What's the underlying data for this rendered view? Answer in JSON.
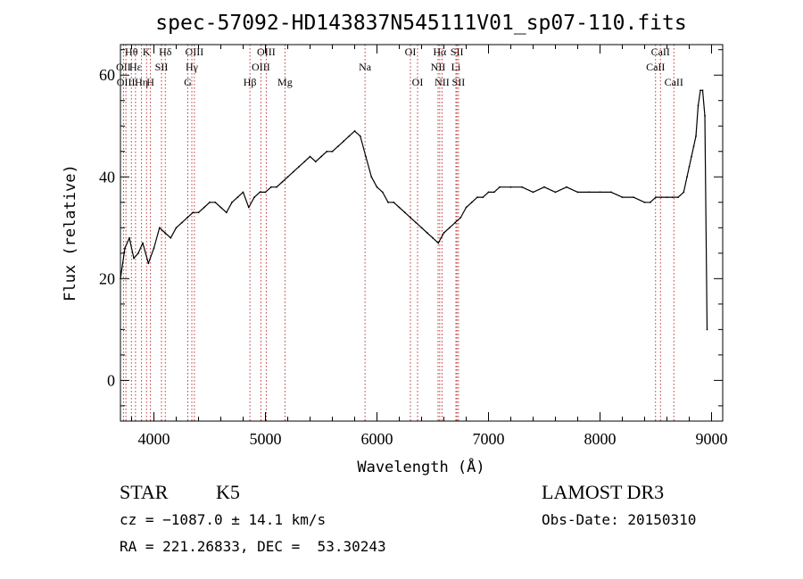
{
  "chart_data": {
    "type": "line",
    "title": "spec-57092-HD143837N545111V01_sp07-110.fits",
    "xlabel": "Wavelength (Å)",
    "ylabel": "Flux (relative)",
    "xlim": [
      3700,
      9100
    ],
    "ylim": [
      -8,
      66
    ],
    "x_ticks": [
      4000,
      5000,
      6000,
      7000,
      8000,
      9000
    ],
    "x_tick_labels": [
      "4000",
      "5000",
      "6000",
      "7000",
      "8000",
      "9000"
    ],
    "y_ticks": [
      0,
      20,
      40,
      60
    ],
    "y_tick_labels": [
      "0",
      "20",
      "40",
      "60"
    ],
    "grid": false,
    "series": [
      {
        "name": "flux",
        "color": "#000000",
        "x": [
          3700,
          3740,
          3780,
          3820,
          3860,
          3900,
          3950,
          4000,
          4050,
          4100,
          4150,
          4200,
          4250,
          4300,
          4350,
          4400,
          4450,
          4500,
          4550,
          4600,
          4650,
          4700,
          4750,
          4800,
          4850,
          4900,
          4950,
          5000,
          5050,
          5100,
          5150,
          5200,
          5250,
          5300,
          5350,
          5400,
          5450,
          5500,
          5550,
          5600,
          5650,
          5700,
          5750,
          5800,
          5850,
          5900,
          5950,
          6000,
          6050,
          6100,
          6150,
          6200,
          6250,
          6300,
          6350,
          6400,
          6450,
          6500,
          6550,
          6600,
          6650,
          6700,
          6750,
          6800,
          6850,
          6900,
          6950,
          7000,
          7050,
          7100,
          7200,
          7300,
          7400,
          7500,
          7600,
          7700,
          7800,
          7900,
          8000,
          8100,
          8200,
          8300,
          8400,
          8450,
          8500,
          8550,
          8600,
          8650,
          8700,
          8750,
          8780,
          8800,
          8820,
          8840,
          8860,
          8880,
          8900,
          8920,
          8940,
          8960
        ],
        "y": [
          20,
          26,
          28,
          24,
          25,
          27,
          23,
          26,
          30,
          29,
          28,
          30,
          31,
          32,
          33,
          33,
          34,
          35,
          35,
          34,
          33,
          35,
          36,
          37,
          34,
          36,
          37,
          37,
          38,
          38,
          39,
          40,
          41,
          42,
          43,
          44,
          43,
          44,
          45,
          45,
          46,
          47,
          48,
          49,
          48,
          44,
          40,
          38,
          37,
          35,
          35,
          34,
          33,
          32,
          31,
          30,
          29,
          28,
          27,
          29,
          30,
          31,
          32,
          34,
          35,
          36,
          36,
          37,
          37,
          38,
          38,
          38,
          37,
          38,
          37,
          38,
          37,
          37,
          37,
          37,
          36,
          36,
          35,
          35,
          36,
          36,
          36,
          36,
          36,
          37,
          40,
          42,
          44,
          46,
          48,
          54,
          57,
          57,
          52,
          10
        ]
      }
    ],
    "spectral_lines": [
      {
        "label": "Hθ",
        "wavelength": 3798,
        "row": 1
      },
      {
        "label": "OII",
        "wavelength": 3727,
        "row": 2
      },
      {
        "label": "OIII",
        "wavelength": 3749,
        "row": 3
      },
      {
        "label": "Hε",
        "wavelength": 3835,
        "row": 2
      },
      {
        "label": "Hη",
        "wavelength": 3889,
        "row": 3
      },
      {
        "label": "K",
        "wavelength": 3934,
        "row": 1
      },
      {
        "label": "H",
        "wavelength": 3969,
        "row": 3
      },
      {
        "label": "SII",
        "wavelength": 4068,
        "row": 2
      },
      {
        "label": "Hδ",
        "wavelength": 4102,
        "row": 1
      },
      {
        "label": "OIII",
        "wavelength": 4363,
        "row": 1
      },
      {
        "label": "Hγ",
        "wavelength": 4340,
        "row": 2
      },
      {
        "label": "G",
        "wavelength": 4304,
        "row": 3
      },
      {
        "label": "Hβ",
        "wavelength": 4861,
        "row": 3
      },
      {
        "label": "OIII",
        "wavelength": 5007,
        "row": 1
      },
      {
        "label": "OIII",
        "wavelength": 4959,
        "row": 2
      },
      {
        "label": "Mg",
        "wavelength": 5175,
        "row": 3
      },
      {
        "label": "Na",
        "wavelength": 5893,
        "row": 2
      },
      {
        "label": "OI",
        "wavelength": 6300,
        "row": 1
      },
      {
        "label": "OI",
        "wavelength": 6364,
        "row": 3
      },
      {
        "label": "Hα",
        "wavelength": 6563,
        "row": 1
      },
      {
        "label": "NII",
        "wavelength": 6548,
        "row": 2
      },
      {
        "label": "NII",
        "wavelength": 6583,
        "row": 3
      },
      {
        "label": "SII",
        "wavelength": 6717,
        "row": 1
      },
      {
        "label": "Li",
        "wavelength": 6708,
        "row": 2
      },
      {
        "label": "SII",
        "wavelength": 6731,
        "row": 3
      },
      {
        "label": "CaII",
        "wavelength": 8542,
        "row": 1
      },
      {
        "label": "CaII",
        "wavelength": 8498,
        "row": 2
      },
      {
        "label": "CaII",
        "wavelength": 8662,
        "row": 3
      }
    ]
  },
  "info": {
    "class_label": "STAR",
    "subclass_label": "K5",
    "survey": "LAMOST DR3",
    "cz": "cz = −1087.0 ± 14.1 km/s",
    "obs_date": "Obs-Date: 20150310",
    "coords": "RA = 221.26833, DEC =  53.30243"
  },
  "colors": {
    "line_marker": "#b22222",
    "spectrum": "#000000",
    "axis": "#000000"
  }
}
